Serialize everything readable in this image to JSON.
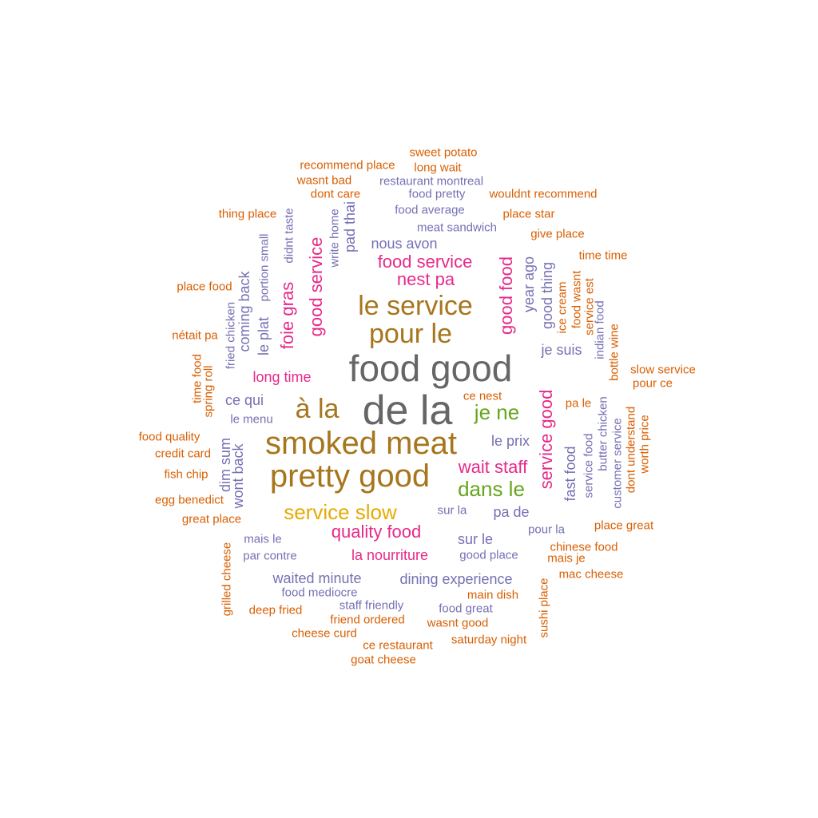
{
  "cloud": {
    "words": [
      {
        "text": "de la",
        "color": "#666666"
      },
      {
        "text": "food good",
        "color": "#666666"
      },
      {
        "text": "smoked meat",
        "color": "#a6761d"
      },
      {
        "text": "pretty good",
        "color": "#a6761d"
      },
      {
        "text": "le service",
        "color": "#a6761d"
      },
      {
        "text": "pour le",
        "color": "#a6761d"
      },
      {
        "text": "à la",
        "color": "#a6761d"
      },
      {
        "text": "service slow",
        "color": "#e6ab02"
      },
      {
        "text": "je ne",
        "color": "#66a61e"
      },
      {
        "text": "dans le",
        "color": "#66a61e"
      },
      {
        "text": "quality food",
        "color": "#e7298a"
      },
      {
        "text": "service good",
        "color": "#e7298a"
      },
      {
        "text": "wait staff",
        "color": "#e7298a"
      },
      {
        "text": "la nourriture",
        "color": "#e7298a"
      },
      {
        "text": "food service",
        "color": "#e7298a"
      },
      {
        "text": "nest pa",
        "color": "#e7298a"
      },
      {
        "text": "good service",
        "color": "#e7298a"
      },
      {
        "text": "good food",
        "color": "#e7298a"
      },
      {
        "text": "foie gras",
        "color": "#e7298a"
      },
      {
        "text": "long time",
        "color": "#e7298a"
      },
      {
        "text": "nous avon",
        "color": "#7570b3"
      },
      {
        "text": "meat sandwich",
        "color": "#7570b3"
      },
      {
        "text": "food average",
        "color": "#7570b3"
      },
      {
        "text": "restaurant montreal",
        "color": "#7570b3"
      },
      {
        "text": "food pretty",
        "color": "#7570b3"
      },
      {
        "text": "je suis",
        "color": "#7570b3"
      },
      {
        "text": "le prix",
        "color": "#7570b3"
      },
      {
        "text": "pa de",
        "color": "#7570b3"
      },
      {
        "text": "sur le",
        "color": "#7570b3"
      },
      {
        "text": "sur la",
        "color": "#7570b3"
      },
      {
        "text": "pour la",
        "color": "#7570b3"
      },
      {
        "text": "good place",
        "color": "#7570b3"
      },
      {
        "text": "dining experience",
        "color": "#7570b3"
      },
      {
        "text": "waited minute",
        "color": "#7570b3"
      },
      {
        "text": "food mediocre",
        "color": "#7570b3"
      },
      {
        "text": "staff friendly",
        "color": "#7570b3"
      },
      {
        "text": "food great",
        "color": "#7570b3"
      },
      {
        "text": "mais le",
        "color": "#7570b3"
      },
      {
        "text": "par contre",
        "color": "#7570b3"
      },
      {
        "text": "ce qui",
        "color": "#7570b3"
      },
      {
        "text": "le menu",
        "color": "#7570b3"
      },
      {
        "text": "fast food",
        "color": "#7570b3"
      },
      {
        "text": "service food",
        "color": "#7570b3"
      },
      {
        "text": "butter chicken",
        "color": "#7570b3"
      },
      {
        "text": "indian food",
        "color": "#7570b3"
      },
      {
        "text": "customer service",
        "color": "#7570b3"
      },
      {
        "text": "year ago",
        "color": "#7570b3"
      },
      {
        "text": "good thing",
        "color": "#7570b3"
      },
      {
        "text": "le plat",
        "color": "#7570b3"
      },
      {
        "text": "coming back",
        "color": "#7570b3"
      },
      {
        "text": "portion small",
        "color": "#7570b3"
      },
      {
        "text": "didnt taste",
        "color": "#7570b3"
      },
      {
        "text": "write home",
        "color": "#7570b3"
      },
      {
        "text": "pad thai",
        "color": "#7570b3"
      },
      {
        "text": "fried chicken",
        "color": "#7570b3"
      },
      {
        "text": "dim sum",
        "color": "#7570b3"
      },
      {
        "text": "wont back",
        "color": "#7570b3"
      },
      {
        "text": "sweet potato",
        "color": "#d95f02"
      },
      {
        "text": "recommend place",
        "color": "#d95f02"
      },
      {
        "text": "long wait",
        "color": "#d95f02"
      },
      {
        "text": "wasnt bad",
        "color": "#d95f02"
      },
      {
        "text": "dont care",
        "color": "#d95f02"
      },
      {
        "text": "wouldnt recommend",
        "color": "#d95f02"
      },
      {
        "text": "thing place",
        "color": "#d95f02"
      },
      {
        "text": "place star",
        "color": "#d95f02"
      },
      {
        "text": "give place",
        "color": "#d95f02"
      },
      {
        "text": "time time",
        "color": "#d95f02"
      },
      {
        "text": "place food",
        "color": "#d95f02"
      },
      {
        "text": "nétait pa",
        "color": "#d95f02"
      },
      {
        "text": "slow service",
        "color": "#d95f02"
      },
      {
        "text": "pour ce",
        "color": "#d95f02"
      },
      {
        "text": "ce nest",
        "color": "#d95f02"
      },
      {
        "text": "pa le",
        "color": "#d95f02"
      },
      {
        "text": "food quality",
        "color": "#d95f02"
      },
      {
        "text": "credit card",
        "color": "#d95f02"
      },
      {
        "text": "fish chip",
        "color": "#d95f02"
      },
      {
        "text": "egg benedict",
        "color": "#d95f02"
      },
      {
        "text": "great place",
        "color": "#d95f02"
      },
      {
        "text": "place great",
        "color": "#d95f02"
      },
      {
        "text": "chinese food",
        "color": "#d95f02"
      },
      {
        "text": "mais je",
        "color": "#d95f02"
      },
      {
        "text": "mac cheese",
        "color": "#d95f02"
      },
      {
        "text": "main dish",
        "color": "#d95f02"
      },
      {
        "text": "wasnt good",
        "color": "#d95f02"
      },
      {
        "text": "friend ordered",
        "color": "#d95f02"
      },
      {
        "text": "deep fried",
        "color": "#d95f02"
      },
      {
        "text": "cheese curd",
        "color": "#d95f02"
      },
      {
        "text": "ce restaurant",
        "color": "#d95f02"
      },
      {
        "text": "saturday night",
        "color": "#d95f02"
      },
      {
        "text": "goat cheese",
        "color": "#d95f02"
      },
      {
        "text": "grilled cheese",
        "color": "#d95f02"
      },
      {
        "text": "sushi place",
        "color": "#d95f02"
      },
      {
        "text": "time food",
        "color": "#d95f02"
      },
      {
        "text": "spring roll",
        "color": "#d95f02"
      },
      {
        "text": "ice cream",
        "color": "#d95f02"
      },
      {
        "text": "food wasnt",
        "color": "#d95f02"
      },
      {
        "text": "service est",
        "color": "#d95f02"
      },
      {
        "text": "bottle wine",
        "color": "#d95f02"
      },
      {
        "text": "dont understand",
        "color": "#d95f02"
      },
      {
        "text": "worth price",
        "color": "#d95f02"
      }
    ]
  }
}
